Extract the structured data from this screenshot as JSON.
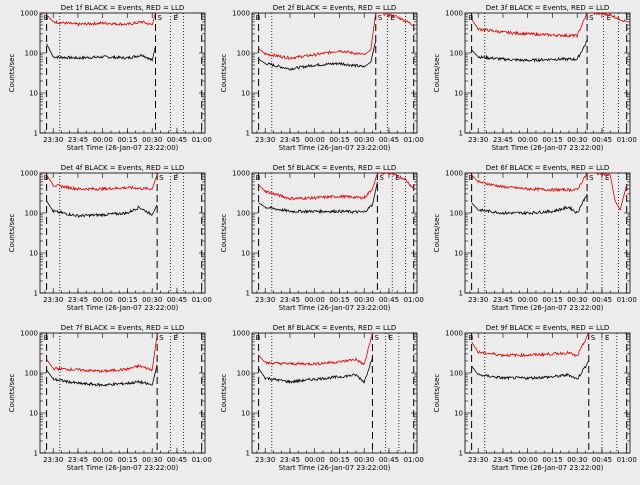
{
  "figure": {
    "background": "#ececec"
  },
  "panels_common": {
    "ylabel": "Counts/sec",
    "xlabel": "Start Time (26-Jan-07 23:22:00)",
    "xticklabels": [
      "23:30",
      "23:45",
      "00:00",
      "00:15",
      "00:30",
      "00:45",
      "01:00"
    ],
    "yticklabels": [
      "1",
      "10",
      "100",
      "1000"
    ],
    "series_colors": {
      "events": "#000000",
      "lld": "#e00000"
    },
    "marker_labels": {
      "B": "B",
      "S": "S",
      "E": "E"
    }
  },
  "chart_data": [
    {
      "type": "line",
      "title": "Det 1f BLACK = Events, RED = LLD",
      "xlim": [
        "23:22",
        "01:02"
      ],
      "ylim": [
        1,
        1000
      ],
      "yscale": "log",
      "grid": false,
      "markers": {
        "dashed": [
          "23:26",
          "00:32",
          "01:00"
        ],
        "dotted": [
          "23:34",
          "00:41",
          "00:49"
        ]
      },
      "series": [
        {
          "x": [
            "23:26",
            "23:30",
            "23:45",
            "00:00",
            "00:15",
            "00:24",
            "00:30",
            "00:32"
          ],
          "values": [
            170,
            80,
            75,
            80,
            75,
            90,
            65,
            150
          ]
        },
        {
          "x": [
            "23:26",
            "23:30",
            "23:45",
            "00:00",
            "00:15",
            "00:24",
            "00:30",
            "00:32"
          ],
          "values": [
            900,
            600,
            520,
            560,
            520,
            600,
            500,
            1000
          ]
        }
      ]
    },
    {
      "type": "line",
      "title": "Det 2f BLACK = Events, RED = LLD",
      "xlim": [
        "23:22",
        "01:02"
      ],
      "ylim": [
        1,
        1000
      ],
      "yscale": "log",
      "grid": false,
      "markers": {
        "dashed": [
          "23:26",
          "00:37",
          "01:00"
        ],
        "dotted": [
          "23:34",
          "00:44",
          "00:55"
        ]
      },
      "series": [
        {
          "x": [
            "23:26",
            "23:30",
            "23:45",
            "00:00",
            "00:15",
            "00:30",
            "00:34",
            "00:37"
          ],
          "values": [
            70,
            55,
            40,
            50,
            55,
            45,
            60,
            200
          ]
        },
        {
          "x": [
            "23:26",
            "23:30",
            "23:45",
            "00:00",
            "00:15",
            "00:30",
            "00:34",
            "00:37",
            "00:40",
            "00:50",
            "01:00"
          ],
          "values": [
            130,
            95,
            75,
            90,
            115,
            90,
            120,
            1000,
            1000,
            800,
            500
          ]
        }
      ]
    },
    {
      "type": "line",
      "title": "Det 3f BLACK = Events, RED = LLD",
      "xlim": [
        "23:22",
        "01:02"
      ],
      "ylim": [
        1,
        1000
      ],
      "yscale": "log",
      "grid": false,
      "markers": {
        "dashed": [
          "23:26",
          "00:36",
          "01:00"
        ],
        "dotted": [
          "23:34",
          "00:46",
          "00:55"
        ]
      },
      "series": [
        {
          "x": [
            "23:26",
            "23:30",
            "23:45",
            "00:00",
            "00:15",
            "00:30",
            "00:36"
          ],
          "values": [
            120,
            80,
            70,
            65,
            70,
            70,
            200
          ]
        },
        {
          "x": [
            "23:26",
            "23:30",
            "23:45",
            "00:00",
            "00:15",
            "00:30",
            "00:36",
            "00:40",
            "00:50",
            "01:00"
          ],
          "values": [
            700,
            400,
            330,
            300,
            280,
            270,
            1000,
            1000,
            900,
            600
          ]
        }
      ]
    },
    {
      "type": "line",
      "title": "Det 4f BLACK = Events, RED = LLD",
      "xlim": [
        "23:22",
        "01:02"
      ],
      "ylim": [
        1,
        1000
      ],
      "yscale": "log",
      "grid": false,
      "markers": {
        "dashed": [
          "23:26",
          "00:33",
          "01:00"
        ],
        "dotted": [
          "23:34",
          "00:41",
          "00:49"
        ]
      },
      "series": [
        {
          "x": [
            "23:26",
            "23:30",
            "23:45",
            "00:00",
            "00:15",
            "00:22",
            "00:30",
            "00:33"
          ],
          "values": [
            200,
            110,
            85,
            90,
            100,
            140,
            90,
            160
          ]
        },
        {
          "x": [
            "23:26",
            "23:30",
            "23:45",
            "00:00",
            "00:15",
            "00:30",
            "00:33"
          ],
          "values": [
            900,
            500,
            400,
            400,
            430,
            400,
            900
          ]
        }
      ]
    },
    {
      "type": "line",
      "title": "Det 5f BLACK = Events, RED = LLD",
      "xlim": [
        "23:22",
        "01:02"
      ],
      "ylim": [
        1,
        1000
      ],
      "yscale": "log",
      "grid": false,
      "markers": {
        "dashed": [
          "23:26",
          "00:38",
          "01:00"
        ],
        "dotted": [
          "23:34",
          "00:47",
          "00:55"
        ]
      },
      "series": [
        {
          "x": [
            "23:26",
            "23:30",
            "23:45",
            "00:00",
            "00:15",
            "00:30",
            "00:35",
            "00:38"
          ],
          "values": [
            180,
            140,
            110,
            110,
            110,
            105,
            160,
            600
          ]
        },
        {
          "x": [
            "23:26",
            "23:30",
            "23:45",
            "00:00",
            "00:15",
            "00:30",
            "00:35",
            "00:38",
            "00:45",
            "00:55",
            "01:00"
          ],
          "values": [
            500,
            350,
            230,
            240,
            260,
            240,
            400,
            1000,
            1000,
            700,
            400
          ]
        }
      ]
    },
    {
      "type": "line",
      "title": "Det 6f BLACK = Events, RED = LLD",
      "xlim": [
        "23:22",
        "01:02"
      ],
      "ylim": [
        1,
        1000
      ],
      "yscale": "log",
      "grid": false,
      "markers": {
        "dashed": [
          "23:26",
          "00:36",
          "01:00"
        ],
        "dotted": [
          "23:34",
          "00:45",
          "00:55"
        ]
      },
      "series": [
        {
          "x": [
            "23:26",
            "23:30",
            "23:45",
            "00:00",
            "00:15",
            "00:25",
            "00:30",
            "00:36"
          ],
          "values": [
            180,
            120,
            100,
            100,
            110,
            140,
            100,
            300
          ]
        },
        {
          "x": [
            "23:26",
            "23:30",
            "23:45",
            "00:00",
            "00:15",
            "00:30",
            "00:36",
            "00:40",
            "00:50",
            "00:53",
            "00:56",
            "01:00"
          ],
          "values": [
            900,
            600,
            450,
            400,
            380,
            380,
            1000,
            1000,
            900,
            200,
            120,
            500
          ]
        }
      ]
    },
    {
      "type": "line",
      "title": "Det 7f BLACK = Events, RED = LLD",
      "xlim": [
        "23:22",
        "01:02"
      ],
      "ylim": [
        1,
        1000
      ],
      "yscale": "log",
      "grid": false,
      "markers": {
        "dashed": [
          "23:26",
          "00:33",
          "01:00"
        ],
        "dotted": [
          "23:34",
          "00:41",
          "00:49"
        ]
      },
      "series": [
        {
          "x": [
            "23:26",
            "23:30",
            "23:45",
            "00:00",
            "00:15",
            "00:22",
            "00:30",
            "00:33"
          ],
          "values": [
            120,
            70,
            55,
            50,
            55,
            60,
            50,
            160
          ]
        },
        {
          "x": [
            "23:26",
            "23:30",
            "23:45",
            "00:00",
            "00:15",
            "00:22",
            "00:30",
            "00:33"
          ],
          "values": [
            220,
            130,
            120,
            110,
            125,
            150,
            120,
            900
          ]
        }
      ]
    },
    {
      "type": "line",
      "title": "Det 8f BLACK = Events, RED = LLD",
      "xlim": [
        "23:22",
        "01:02"
      ],
      "ylim": [
        1,
        1000
      ],
      "yscale": "log",
      "grid": false,
      "markers": {
        "dashed": [
          "23:26",
          "00:35",
          "01:00"
        ],
        "dotted": [
          "23:34",
          "00:43",
          "00:51"
        ]
      },
      "series": [
        {
          "x": [
            "23:26",
            "23:30",
            "23:45",
            "00:00",
            "00:15",
            "00:25",
            "00:30",
            "00:35"
          ],
          "values": [
            130,
            75,
            60,
            70,
            80,
            90,
            60,
            250
          ]
        },
        {
          "x": [
            "23:26",
            "23:30",
            "23:45",
            "00:00",
            "00:15",
            "00:25",
            "00:30",
            "00:35"
          ],
          "values": [
            280,
            180,
            170,
            170,
            190,
            220,
            160,
            1000
          ]
        }
      ]
    },
    {
      "type": "line",
      "title": "Det 9f BLACK = Events, RED = LLD",
      "xlim": [
        "23:22",
        "01:02"
      ],
      "ylim": [
        1,
        1000
      ],
      "yscale": "log",
      "grid": false,
      "markers": {
        "dashed": [
          "23:26",
          "00:37",
          "01:00"
        ],
        "dotted": [
          "23:34",
          "00:45",
          "00:54"
        ]
      },
      "series": [
        {
          "x": [
            "23:26",
            "23:30",
            "23:45",
            "00:00",
            "00:15",
            "00:25",
            "00:30",
            "00:37"
          ],
          "values": [
            150,
            90,
            75,
            75,
            80,
            90,
            70,
            200
          ]
        },
        {
          "x": [
            "23:26",
            "23:30",
            "23:45",
            "00:00",
            "00:15",
            "00:25",
            "00:30",
            "00:37"
          ],
          "values": [
            600,
            330,
            280,
            280,
            300,
            320,
            260,
            1000
          ]
        }
      ]
    }
  ]
}
